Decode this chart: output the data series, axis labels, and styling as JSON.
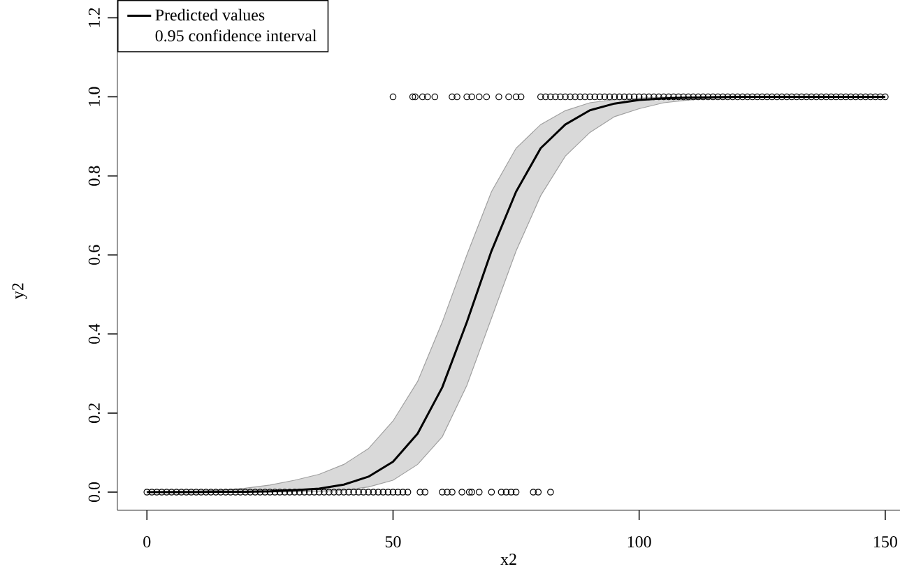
{
  "chart_data": {
    "type": "scatter",
    "xlabel": "x2",
    "ylabel": "y2",
    "legend": "top left",
    "annotations": [
      "0.95 confidence interval"
    ],
    "xlim": [
      -6,
      153
    ],
    "ylim": [
      -0.046,
      1.245
    ],
    "xticks": [
      0,
      50,
      100,
      150
    ],
    "yticks": [
      {
        "value": 0,
        "label": "0.0"
      },
      {
        "value": 0.2,
        "label": "0.2"
      },
      {
        "value": 0.4,
        "label": "0.4"
      },
      {
        "value": 0.6,
        "label": "0.6"
      },
      {
        "value": 0.8,
        "label": "0.8"
      },
      {
        "value": 1,
        "label": "1.0"
      },
      {
        "value": 1.2,
        "label": "1.2"
      }
    ],
    "series": [
      {
        "marker": "circle",
        "color": "#000000",
        "x": [
          0,
          1,
          2,
          3,
          4,
          5,
          6,
          7,
          8,
          9,
          10,
          11,
          12,
          13,
          14,
          15,
          16,
          17,
          18,
          19,
          20,
          21,
          22,
          23,
          24,
          25,
          26,
          27,
          28,
          29,
          30,
          31,
          32,
          33,
          34,
          35,
          36,
          37,
          38,
          39,
          40,
          41,
          42,
          43,
          44,
          45,
          46,
          47,
          48,
          49,
          50,
          51,
          52,
          53,
          55.5,
          56.5,
          60,
          61,
          62,
          64,
          65.5,
          66,
          67.5,
          70,
          72,
          73,
          74,
          75,
          78.5,
          79.5,
          82,
          50,
          54,
          54.5,
          56,
          57,
          58.5,
          62,
          63,
          65,
          66,
          67.5,
          69,
          71.5,
          73.5,
          75,
          76,
          80,
          81,
          82,
          83,
          84,
          85,
          86,
          87,
          88,
          89,
          90,
          91,
          92,
          93,
          94,
          95,
          96,
          97,
          98,
          99,
          100,
          101,
          102,
          103,
          104,
          105,
          106,
          107,
          108,
          109,
          110,
          111,
          112,
          113,
          114,
          115,
          116,
          117,
          118,
          119,
          120,
          121,
          122,
          123,
          124,
          125,
          126,
          127,
          128,
          129,
          130,
          131,
          132,
          133,
          134,
          135,
          136,
          137,
          138,
          139,
          140,
          141,
          142,
          143,
          144,
          145,
          146,
          147,
          148,
          149,
          150
        ],
        "values": [
          0,
          0,
          0,
          0,
          0,
          0,
          0,
          0,
          0,
          0,
          0,
          0,
          0,
          0,
          0,
          0,
          0,
          0,
          0,
          0,
          0,
          0,
          0,
          0,
          0,
          0,
          0,
          0,
          0,
          0,
          0,
          0,
          0,
          0,
          0,
          0,
          0,
          0,
          0,
          0,
          0,
          0,
          0,
          0,
          0,
          0,
          0,
          0,
          0,
          0,
          0,
          0,
          0,
          0,
          0,
          0,
          0,
          0,
          0,
          0,
          0,
          0,
          0,
          0,
          0,
          0,
          0,
          0,
          0,
          0,
          0,
          1,
          1,
          1,
          1,
          1,
          1,
          1,
          1,
          1,
          1,
          1,
          1,
          1,
          1,
          1,
          1,
          1,
          1,
          1,
          1,
          1,
          1,
          1,
          1,
          1,
          1,
          1,
          1,
          1,
          1,
          1,
          1,
          1,
          1,
          1,
          1,
          1,
          1,
          1,
          1,
          1,
          1,
          1,
          1,
          1,
          1,
          1,
          1,
          1,
          1,
          1,
          1,
          1,
          1,
          1,
          1,
          1,
          1,
          1,
          1,
          1,
          1,
          1,
          1,
          1,
          1,
          1,
          1,
          1,
          1,
          1,
          1,
          1,
          1,
          1,
          1,
          1,
          1,
          1,
          1,
          1,
          1,
          1,
          1,
          1,
          1,
          1
        ]
      },
      {
        "type": "line",
        "name": "Predicted values",
        "marker": "none",
        "line_style": "solid",
        "color": "#000000",
        "x": [
          0,
          5,
          10,
          15,
          20,
          25,
          30,
          35,
          40,
          45,
          50,
          55,
          60,
          65,
          70,
          75,
          80,
          85,
          90,
          95,
          100,
          105,
          110,
          115,
          120,
          125,
          130,
          135,
          140,
          145,
          150
        ],
        "values": [
          0,
          0,
          0,
          0.001,
          0.001,
          0.002,
          0.005,
          0.009,
          0.019,
          0.039,
          0.077,
          0.148,
          0.265,
          0.43,
          0.61,
          0.76,
          0.87,
          0.93,
          0.966,
          0.983,
          0.992,
          0.996,
          0.998,
          0.999,
          1,
          1,
          1,
          1,
          1,
          1,
          1
        ],
        "lower": [
          0,
          0,
          0,
          0,
          0,
          0,
          0.001,
          0.002,
          0.005,
          0.013,
          0.03,
          0.07,
          0.14,
          0.27,
          0.44,
          0.61,
          0.75,
          0.85,
          0.91,
          0.95,
          0.97,
          0.985,
          0.992,
          0.996,
          0.998,
          0.999,
          1,
          1,
          1,
          1,
          1
        ],
        "upper": [
          0.001,
          0.002,
          0.003,
          0.005,
          0.01,
          0.018,
          0.03,
          0.045,
          0.07,
          0.11,
          0.18,
          0.28,
          0.43,
          0.6,
          0.76,
          0.87,
          0.93,
          0.965,
          0.985,
          0.993,
          0.997,
          0.999,
          1,
          1,
          1,
          1,
          1,
          1,
          1,
          1,
          1
        ]
      }
    ]
  }
}
